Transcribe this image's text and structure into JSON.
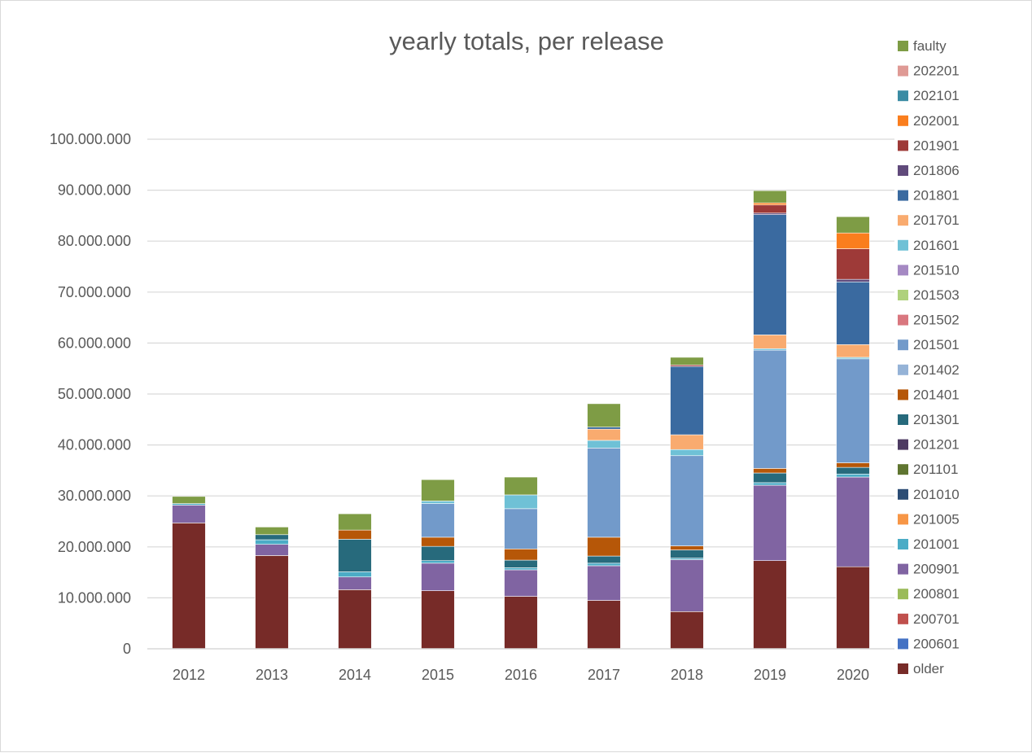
{
  "chart_data": {
    "type": "bar",
    "stacked": true,
    "title": "yearly totals, per release",
    "xlabel": "",
    "ylabel": "",
    "categories": [
      "2012",
      "2013",
      "2014",
      "2015",
      "2016",
      "2017",
      "2018",
      "2019",
      "2020"
    ],
    "ylim": [
      0,
      100000000
    ],
    "yticks": [
      0,
      10000000,
      20000000,
      30000000,
      40000000,
      50000000,
      60000000,
      70000000,
      80000000,
      90000000,
      100000000
    ],
    "ytick_labels": [
      "0",
      "10.000.000",
      "20.000.000",
      "30.000.000",
      "40.000.000",
      "50.000.000",
      "60.000.000",
      "70.000.000",
      "80.000.000",
      "90.000.000",
      "100.000.000"
    ],
    "grid": true,
    "legend_position": "right",
    "series": [
      {
        "name": "older",
        "color": "#772b28",
        "values": [
          24700000,
          18300000,
          11600000,
          11400000,
          10300000,
          9500000,
          7300000,
          17300000,
          16100000
        ]
      },
      {
        "name": "200601",
        "color": "#4472c4",
        "values": [
          0,
          0,
          0,
          0,
          0,
          0,
          0,
          0,
          0
        ]
      },
      {
        "name": "200701",
        "color": "#c0504d",
        "values": [
          0,
          0,
          0,
          0,
          0,
          0,
          0,
          0,
          0
        ]
      },
      {
        "name": "200801",
        "color": "#9bbb59",
        "values": [
          0,
          0,
          0,
          0,
          0,
          0,
          0,
          0,
          0
        ]
      },
      {
        "name": "200901",
        "color": "#8064a2",
        "values": [
          3500000,
          2200000,
          2500000,
          5400000,
          5200000,
          6800000,
          10200000,
          14800000,
          17600000
        ]
      },
      {
        "name": "201001",
        "color": "#4bacc6",
        "values": [
          300000,
          900000,
          1000000,
          500000,
          400000,
          500000,
          300000,
          500000,
          600000
        ]
      },
      {
        "name": "201005",
        "color": "#f79646",
        "values": [
          0,
          0,
          0,
          0,
          0,
          0,
          0,
          0,
          0
        ]
      },
      {
        "name": "201010",
        "color": "#2c4d75",
        "values": [
          0,
          0,
          0,
          0,
          0,
          0,
          0,
          0,
          0
        ]
      },
      {
        "name": "201101",
        "color": "#5f7530",
        "values": [
          0,
          0,
          0,
          0,
          0,
          0,
          0,
          0,
          0
        ]
      },
      {
        "name": "201201",
        "color": "#4d3b62",
        "values": [
          0,
          0,
          0,
          0,
          0,
          0,
          0,
          0,
          0
        ]
      },
      {
        "name": "201301",
        "color": "#276a7c",
        "values": [
          0,
          1000000,
          6400000,
          2800000,
          1500000,
          1400000,
          1600000,
          1900000,
          1300000
        ]
      },
      {
        "name": "201401",
        "color": "#b65708",
        "values": [
          0,
          0,
          1800000,
          1800000,
          2200000,
          3700000,
          800000,
          900000,
          900000
        ]
      },
      {
        "name": "201402",
        "color": "#95b3d7",
        "values": [
          0,
          0,
          0,
          0,
          0,
          0,
          0,
          0,
          0
        ]
      },
      {
        "name": "201501",
        "color": "#729aca",
        "values": [
          0,
          0,
          0,
          6600000,
          7900000,
          17500000,
          17700000,
          23200000,
          20400000
        ]
      },
      {
        "name": "201502",
        "color": "#d9777f",
        "values": [
          0,
          0,
          0,
          0,
          0,
          0,
          0,
          0,
          0
        ]
      },
      {
        "name": "201503",
        "color": "#afd17c",
        "values": [
          0,
          0,
          0,
          0,
          0,
          0,
          0,
          0,
          0
        ]
      },
      {
        "name": "201510",
        "color": "#a589c3",
        "values": [
          0,
          0,
          0,
          0,
          0,
          0,
          0,
          0,
          0
        ]
      },
      {
        "name": "201601",
        "color": "#6fc1d6",
        "values": [
          0,
          0,
          0,
          500000,
          2700000,
          1500000,
          1200000,
          300000,
          300000
        ]
      },
      {
        "name": "201701",
        "color": "#f9ab6f",
        "values": [
          0,
          0,
          0,
          0,
          0,
          2200000,
          2900000,
          2700000,
          2500000
        ]
      },
      {
        "name": "201801",
        "color": "#3a6aa0",
        "values": [
          0,
          0,
          0,
          0,
          0,
          400000,
          13400000,
          23600000,
          12300000
        ]
      },
      {
        "name": "201806",
        "color": "#604a7b",
        "values": [
          0,
          0,
          0,
          0,
          0,
          0,
          0,
          300000,
          500000
        ]
      },
      {
        "name": "201901",
        "color": "#9e3a38",
        "values": [
          0,
          0,
          0,
          0,
          0,
          0,
          300000,
          1600000,
          6000000
        ]
      },
      {
        "name": "202001",
        "color": "#fa7e1e",
        "values": [
          0,
          0,
          0,
          0,
          0,
          0,
          0,
          400000,
          3100000
        ]
      },
      {
        "name": "202101",
        "color": "#3b8ca4",
        "values": [
          0,
          0,
          0,
          0,
          0,
          0,
          0,
          0,
          0
        ]
      },
      {
        "name": "202201",
        "color": "#df9a95",
        "values": [
          0,
          0,
          0,
          0,
          0,
          0,
          0,
          0,
          0
        ]
      },
      {
        "name": "faulty",
        "color": "#7e9c45",
        "values": [
          1400000,
          1500000,
          3200000,
          4200000,
          3500000,
          4600000,
          1500000,
          2400000,
          3200000
        ]
      }
    ]
  }
}
